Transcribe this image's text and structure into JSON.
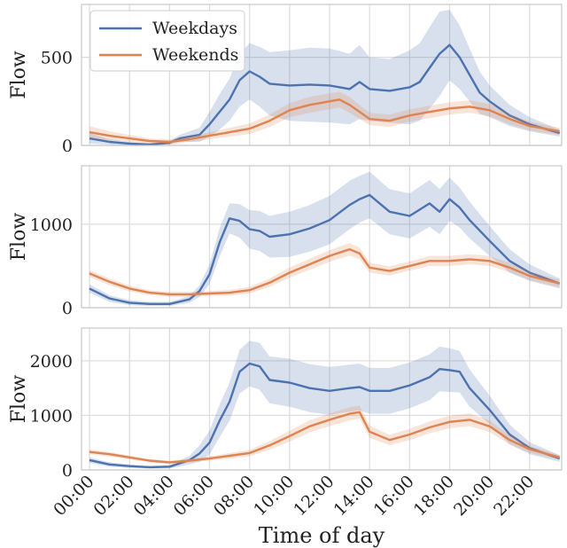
{
  "chart_data": {
    "type": "line",
    "x_ticks": [
      "00:00",
      "02:00",
      "04:00",
      "06:00",
      "08:00",
      "10:00",
      "12:00",
      "14:00",
      "16:00",
      "18:00",
      "20:00",
      "22:00"
    ],
    "xlabel": "Time of day",
    "colors": {
      "weekdays": "#4c72b0",
      "weekends": "#dd8452"
    },
    "legend": {
      "placement": "top-left",
      "entries": [
        "Weekdays",
        "Weekends"
      ]
    },
    "grid": true,
    "panels": [
      {
        "ylabel": "Flow",
        "ylim": [
          0,
          800
        ],
        "yticks": [
          0,
          500
        ],
        "series": [
          {
            "name": "Weekdays",
            "hours": [
              0,
              1,
              2,
              3,
              4,
              4.5,
              5.5,
              6,
              6.5,
              7,
              7.5,
              8,
              8.5,
              9,
              10,
              11,
              12,
              13,
              13.5,
              14,
              15,
              16,
              16.5,
              17,
              17.5,
              18,
              18.5,
              19,
              19.5,
              20,
              21,
              22,
              23.5
            ],
            "values": [
              40,
              20,
              10,
              5,
              15,
              40,
              60,
              120,
              190,
              260,
              370,
              420,
              390,
              350,
              340,
              345,
              340,
              320,
              360,
              320,
              310,
              330,
              360,
              440,
              520,
              570,
              500,
              400,
              300,
              250,
              170,
              120,
              70
            ],
            "band": [
              30,
              15,
              10,
              5,
              10,
              20,
              40,
              70,
              100,
              120,
              150,
              160,
              170,
              180,
              200,
              210,
              210,
              200,
              210,
              180,
              180,
              210,
              220,
              230,
              240,
              200,
              180,
              150,
              120,
              90,
              60,
              40,
              20
            ]
          },
          {
            "name": "Weekends",
            "hours": [
              0,
              1,
              2,
              3,
              4,
              5,
              6,
              7,
              8,
              9,
              10,
              11,
              12,
              12.5,
              13,
              13.5,
              14,
              15,
              16,
              17,
              18,
              19,
              19.5,
              20,
              21,
              22,
              23.5
            ],
            "values": [
              75,
              55,
              40,
              25,
              20,
              35,
              55,
              75,
              95,
              140,
              200,
              230,
              250,
              260,
              230,
              190,
              150,
              140,
              170,
              190,
              210,
              220,
              210,
              200,
              150,
              110,
              80
            ],
            "band": [
              35,
              25,
              20,
              15,
              15,
              15,
              20,
              25,
              30,
              35,
              40,
              45,
              45,
              45,
              45,
              40,
              35,
              35,
              35,
              35,
              35,
              35,
              35,
              35,
              30,
              25,
              20
            ]
          }
        ]
      },
      {
        "ylabel": "Flow",
        "ylim": [
          0,
          1700
        ],
        "yticks": [
          0,
          1000
        ],
        "series": [
          {
            "name": "Weekdays",
            "hours": [
              0,
              1,
              2,
              3,
              4,
              5,
              5.5,
              6,
              6.5,
              7,
              7.5,
              8,
              8.5,
              9,
              10,
              11,
              12,
              13,
              13.5,
              14,
              15,
              16,
              17,
              17.5,
              18,
              18.5,
              19,
              20,
              21,
              22,
              23.5
            ],
            "values": [
              230,
              110,
              60,
              45,
              45,
              100,
              200,
              400,
              780,
              1070,
              1040,
              940,
              920,
              850,
              880,
              950,
              1050,
              1230,
              1300,
              1350,
              1150,
              1100,
              1250,
              1150,
              1300,
              1200,
              1050,
              800,
              560,
              420,
              290
            ],
            "band": [
              50,
              40,
              30,
              25,
              25,
              40,
              70,
              120,
              170,
              180,
              200,
              230,
              240,
              250,
              270,
              280,
              290,
              290,
              280,
              280,
              270,
              270,
              280,
              270,
              260,
              240,
              220,
              180,
              140,
              100,
              60
            ]
          },
          {
            "name": "Weekends",
            "hours": [
              0,
              1,
              2,
              3,
              4,
              5,
              6,
              7,
              8,
              9,
              10,
              11,
              12,
              13,
              13.5,
              14,
              15,
              16,
              17,
              18,
              19,
              20,
              21,
              22,
              23.5
            ],
            "values": [
              410,
              310,
              230,
              180,
              160,
              160,
              170,
              180,
              210,
              300,
              420,
              520,
              620,
              700,
              650,
              480,
              440,
              500,
              560,
              560,
              580,
              560,
              480,
              380,
              290
            ],
            "band": [
              40,
              40,
              35,
              30,
              30,
              30,
              30,
              35,
              40,
              50,
              60,
              65,
              70,
              75,
              70,
              60,
              55,
              55,
              60,
              60,
              60,
              60,
              55,
              50,
              45
            ]
          }
        ]
      },
      {
        "ylabel": "Flow",
        "ylim": [
          0,
          2600
        ],
        "yticks": [
          0,
          1000,
          2000
        ],
        "series": [
          {
            "name": "Weekdays",
            "hours": [
              0,
              1,
              2,
              3,
              4,
              5,
              5.5,
              6,
              6.5,
              7,
              7.5,
              8,
              8.5,
              9,
              10,
              11,
              12,
              13,
              13.5,
              14,
              15,
              16,
              17,
              17.5,
              18,
              18.5,
              19,
              20,
              21,
              22,
              23.5
            ],
            "values": [
              180,
              100,
              70,
              50,
              60,
              180,
              300,
              500,
              900,
              1250,
              1800,
              1950,
              1900,
              1650,
              1600,
              1500,
              1450,
              1500,
              1520,
              1450,
              1450,
              1550,
              1700,
              1850,
              1830,
              1800,
              1500,
              1100,
              650,
              400,
              210
            ],
            "band": [
              50,
              40,
              30,
              25,
              30,
              80,
              150,
              220,
              300,
              350,
              400,
              420,
              430,
              430,
              440,
              440,
              440,
              430,
              430,
              420,
              420,
              420,
              420,
              410,
              400,
              380,
              340,
              260,
              180,
              110,
              60
            ]
          },
          {
            "name": "Weekends",
            "hours": [
              0,
              1,
              2,
              3,
              4,
              5,
              6,
              7,
              8,
              9,
              10,
              11,
              12,
              13,
              13.5,
              14,
              15,
              16,
              17,
              18,
              19,
              20,
              21,
              22,
              23.5
            ],
            "values": [
              330,
              290,
              230,
              170,
              140,
              170,
              210,
              260,
              310,
              450,
              620,
              800,
              920,
              1030,
              1060,
              700,
              550,
              650,
              780,
              880,
              920,
              800,
              550,
              380,
              230
            ],
            "band": [
              45,
              40,
              35,
              30,
              30,
              35,
              40,
              50,
              60,
              80,
              100,
              110,
              115,
              120,
              120,
              110,
              95,
              100,
              110,
              115,
              115,
              105,
              85,
              65,
              45
            ]
          }
        ]
      }
    ]
  }
}
